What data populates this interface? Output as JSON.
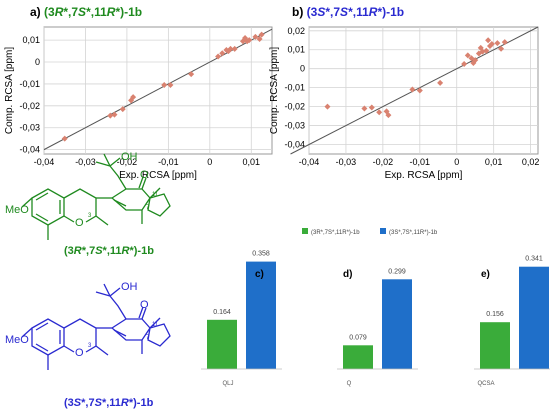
{
  "panels": {
    "a": {
      "letter": "a)",
      "label": "(3R*,7S*,11R*)-1b",
      "label_parts": [
        "(3",
        "R",
        "*,7",
        "S",
        "*,11",
        "R",
        "*)-1b"
      ]
    },
    "b": {
      "letter": "b)",
      "label": "(3S*,7S*,11R*)-1b",
      "label_parts": [
        "(3",
        "S",
        "*,7",
        "S",
        "*,11",
        "R",
        "*)-1b"
      ]
    },
    "c": {
      "letter": "c)"
    },
    "d": {
      "letter": "d)"
    },
    "e": {
      "letter": "e)"
    }
  },
  "structures": {
    "green": {
      "substituent": "MeO",
      "oh": "OH",
      "ring_o": "O",
      "ketone_o": "O",
      "locant_3": "3",
      "locant_7": "7",
      "locant_11": "11",
      "caption": "(3R*,7S*,11R*)-1b",
      "caption_parts": [
        "(3",
        "R",
        "*,7",
        "S",
        "*,11",
        "R",
        "*)-1b"
      ]
    },
    "blue": {
      "substituent": "MeO",
      "oh": "OH",
      "ring_o": "O",
      "ketone_o": "O",
      "locant_3": "3",
      "locant_7": "7",
      "locant_11": "11",
      "caption": "(3S*,7S*,11R*)-1b",
      "caption_parts": [
        "(3",
        "S",
        "*,7",
        "S",
        "*,11",
        "R",
        "*)-1b"
      ]
    }
  },
  "colors": {
    "green": "#3aac3a",
    "blue": "#1f6fc9",
    "green_text": "#1f8a1f",
    "blue_text": "#2a2ad0",
    "scatter": "#d98270",
    "line": "#555555"
  },
  "chart_data": [
    {
      "panel": "a",
      "type": "scatter",
      "xlabel": "Exp. RCSA [ppm]",
      "ylabel": "Comp. RCSA [ppm]",
      "xlim": [
        -0.04,
        0.015
      ],
      "ylim": [
        -0.042,
        0.016
      ],
      "xticks": [
        -0.04,
        -0.03,
        -0.02,
        -0.01,
        0,
        0.01
      ],
      "xtick_labels": [
        "-0,04",
        "-0,03",
        "-0,02",
        "-0,01",
        "0",
        "0,01"
      ],
      "yticks": [
        -0.04,
        -0.03,
        -0.02,
        -0.01,
        0,
        0.01
      ],
      "ytick_labels": [
        "-0,04",
        "-0,03",
        "-0,02",
        "-0,01",
        "0",
        "0,01"
      ],
      "points": [
        {
          "x": -0.035,
          "y": -0.035
        },
        {
          "x": -0.024,
          "y": -0.0245
        },
        {
          "x": -0.023,
          "y": -0.024
        },
        {
          "x": -0.021,
          "y": -0.0215
        },
        {
          "x": -0.019,
          "y": -0.0175
        },
        {
          "x": -0.0185,
          "y": -0.016
        },
        {
          "x": -0.011,
          "y": -0.0105
        },
        {
          "x": -0.0095,
          "y": -0.0105
        },
        {
          "x": -0.0045,
          "y": -0.0055
        },
        {
          "x": 0.002,
          "y": 0.0025
        },
        {
          "x": 0.003,
          "y": 0.004
        },
        {
          "x": 0.004,
          "y": 0.0055
        },
        {
          "x": 0.0045,
          "y": 0.005
        },
        {
          "x": 0.005,
          "y": 0.006
        },
        {
          "x": 0.006,
          "y": 0.006
        },
        {
          "x": 0.008,
          "y": 0.0095
        },
        {
          "x": 0.0085,
          "y": 0.011
        },
        {
          "x": 0.009,
          "y": 0.0095
        },
        {
          "x": 0.0095,
          "y": 0.01
        },
        {
          "x": 0.011,
          "y": 0.0115
        },
        {
          "x": 0.012,
          "y": 0.0105
        },
        {
          "x": 0.0125,
          "y": 0.0125
        }
      ],
      "diagonal": [
        [
          -0.04,
          -0.04
        ],
        [
          0.015,
          0.015
        ]
      ]
    },
    {
      "panel": "b",
      "type": "scatter",
      "xlabel": "Exp. RCSA [ppm]",
      "ylabel": "Comp. RCSA [ppm]",
      "xlim": [
        -0.04,
        0.022
      ],
      "ylim": [
        -0.045,
        0.022
      ],
      "xticks": [
        -0.04,
        -0.03,
        -0.02,
        -0.01,
        0,
        0.01,
        0.02
      ],
      "xtick_labels": [
        "-0,04",
        "-0,03",
        "-0,02",
        "-0,01",
        "0",
        "0,01",
        "0,02"
      ],
      "yticks": [
        -0.04,
        -0.03,
        -0.02,
        -0.01,
        0,
        0.01,
        0.02
      ],
      "ytick_labels": [
        "-0,04",
        "-0,03",
        "-0,02",
        "-0,01",
        "0",
        "0,01",
        "0,02"
      ],
      "points": [
        {
          "x": -0.035,
          "y": -0.02
        },
        {
          "x": -0.025,
          "y": -0.021
        },
        {
          "x": -0.023,
          "y": -0.0205
        },
        {
          "x": -0.021,
          "y": -0.023
        },
        {
          "x": -0.019,
          "y": -0.0225
        },
        {
          "x": -0.0185,
          "y": -0.0245
        },
        {
          "x": -0.012,
          "y": -0.011
        },
        {
          "x": -0.01,
          "y": -0.0115
        },
        {
          "x": -0.0045,
          "y": -0.0075
        },
        {
          "x": 0.002,
          "y": 0.0025
        },
        {
          "x": 0.003,
          "y": 0.007
        },
        {
          "x": 0.004,
          "y": 0.0055
        },
        {
          "x": 0.0045,
          "y": 0.003
        },
        {
          "x": 0.005,
          "y": 0.0045
        },
        {
          "x": 0.006,
          "y": 0.008
        },
        {
          "x": 0.0065,
          "y": 0.011
        },
        {
          "x": 0.007,
          "y": 0.009
        },
        {
          "x": 0.008,
          "y": 0.0095
        },
        {
          "x": 0.0085,
          "y": 0.015
        },
        {
          "x": 0.009,
          "y": 0.012
        },
        {
          "x": 0.0095,
          "y": 0.013
        },
        {
          "x": 0.011,
          "y": 0.0135
        },
        {
          "x": 0.012,
          "y": 0.0105
        },
        {
          "x": 0.013,
          "y": 0.014
        }
      ],
      "diagonal": [
        [
          -0.045,
          -0.045
        ],
        [
          0.022,
          0.022
        ]
      ]
    },
    {
      "panel": "c",
      "type": "bar",
      "categories": [
        "QLJ"
      ],
      "legend": "top",
      "ylim": [
        0,
        0.4
      ],
      "series": [
        {
          "name": "(3R*,7S*,11R*)-1b",
          "values": [
            0.164
          ],
          "labels": [
            "0.164"
          ]
        },
        {
          "name": "(3S*,7S*,11R*)-1b",
          "values": [
            0.358
          ],
          "labels": [
            "0.358"
          ]
        }
      ]
    },
    {
      "panel": "d",
      "type": "bar",
      "categories": [
        "Q"
      ],
      "ylim": [
        0,
        0.4
      ],
      "series": [
        {
          "name": "(3R*,7S*,11R*)-1b",
          "values": [
            0.079
          ],
          "labels": [
            "0.079"
          ]
        },
        {
          "name": "(3S*,7S*,11R*)-1b",
          "values": [
            0.299
          ],
          "labels": [
            "0.299"
          ]
        }
      ]
    },
    {
      "panel": "e",
      "type": "bar",
      "categories": [
        "QCSA"
      ],
      "ylim": [
        0,
        0.4
      ],
      "series": [
        {
          "name": "(3R*,7S*,11R*)-1b",
          "values": [
            0.156
          ],
          "labels": [
            "0.156"
          ]
        },
        {
          "name": "(3S*,7S*,11R*)-1b",
          "values": [
            0.341
          ],
          "labels": [
            "0.341"
          ]
        }
      ]
    }
  ]
}
